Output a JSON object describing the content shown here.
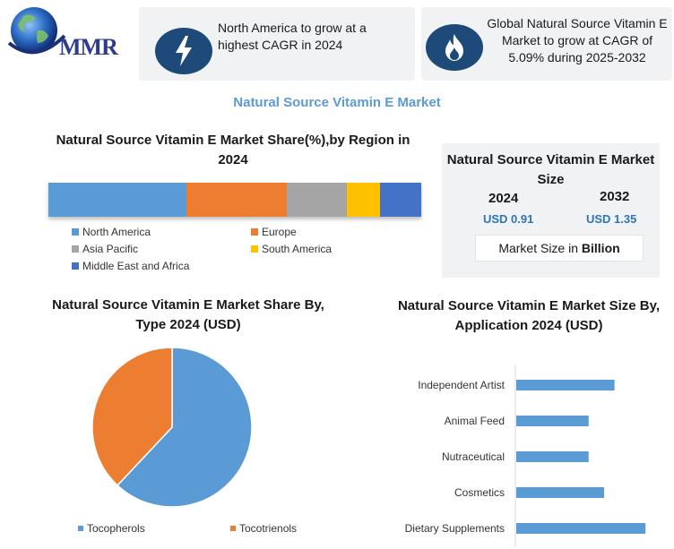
{
  "logo": {
    "text": "MMR"
  },
  "cards": [
    {
      "icon": "lightning-bolt-icon",
      "text": "North America to grow at a highest CAGR in 2024"
    },
    {
      "icon": "flame-icon",
      "text": "Global Natural Source Vitamin E Market to grow at CAGR of 5.09% during 2025-2032"
    }
  ],
  "main_title": "Natural Source Vitamin E Market",
  "market_size": {
    "title": "Natural Source Vitamin E Market Size",
    "year1": "2024",
    "value1": "USD 0.91",
    "year2": "2032",
    "value2": "USD 1.35",
    "unit_prefix": "Market Size in ",
    "unit_bold": "Billion"
  },
  "colors": {
    "north_america": "#5b9bd5",
    "europe": "#ed7d31",
    "asia_pacific": "#a5a5a5",
    "south_america": "#ffc000",
    "mea": "#4472c4",
    "card_icon": "#1d4a78",
    "title_blue": "#5b9bd5"
  },
  "chart_data": [
    {
      "type": "bar",
      "orientation": "horizontal-stacked",
      "title": "Natural Source Vitamin E Market Share(%),by Region in 2024",
      "series": [
        {
          "name": "North America",
          "value": 37
        },
        {
          "name": "Europe",
          "value": 27
        },
        {
          "name": "Asia Pacific",
          "value": 16
        },
        {
          "name": "South America",
          "value": 9
        },
        {
          "name": "Middle East and Africa",
          "value": 11
        }
      ],
      "legend": "bottom"
    },
    {
      "type": "pie",
      "title": "Natural Source Vitamin E Market  Share By, Type  2024  (USD)",
      "categories": [
        "Tocopherols",
        "Tocotrienols"
      ],
      "values": [
        62,
        38
      ],
      "legend": "bottom"
    },
    {
      "type": "bar",
      "orientation": "horizontal",
      "title": "Natural Source Vitamin E Market Size By, Application 2024  (USD)",
      "categories": [
        "Independent Artist",
        "Animal Feed",
        "Nutraceutical",
        "Cosmetics",
        "Dietary Supplements"
      ],
      "values": [
        0.19,
        0.14,
        0.14,
        0.17,
        0.25
      ]
    }
  ]
}
